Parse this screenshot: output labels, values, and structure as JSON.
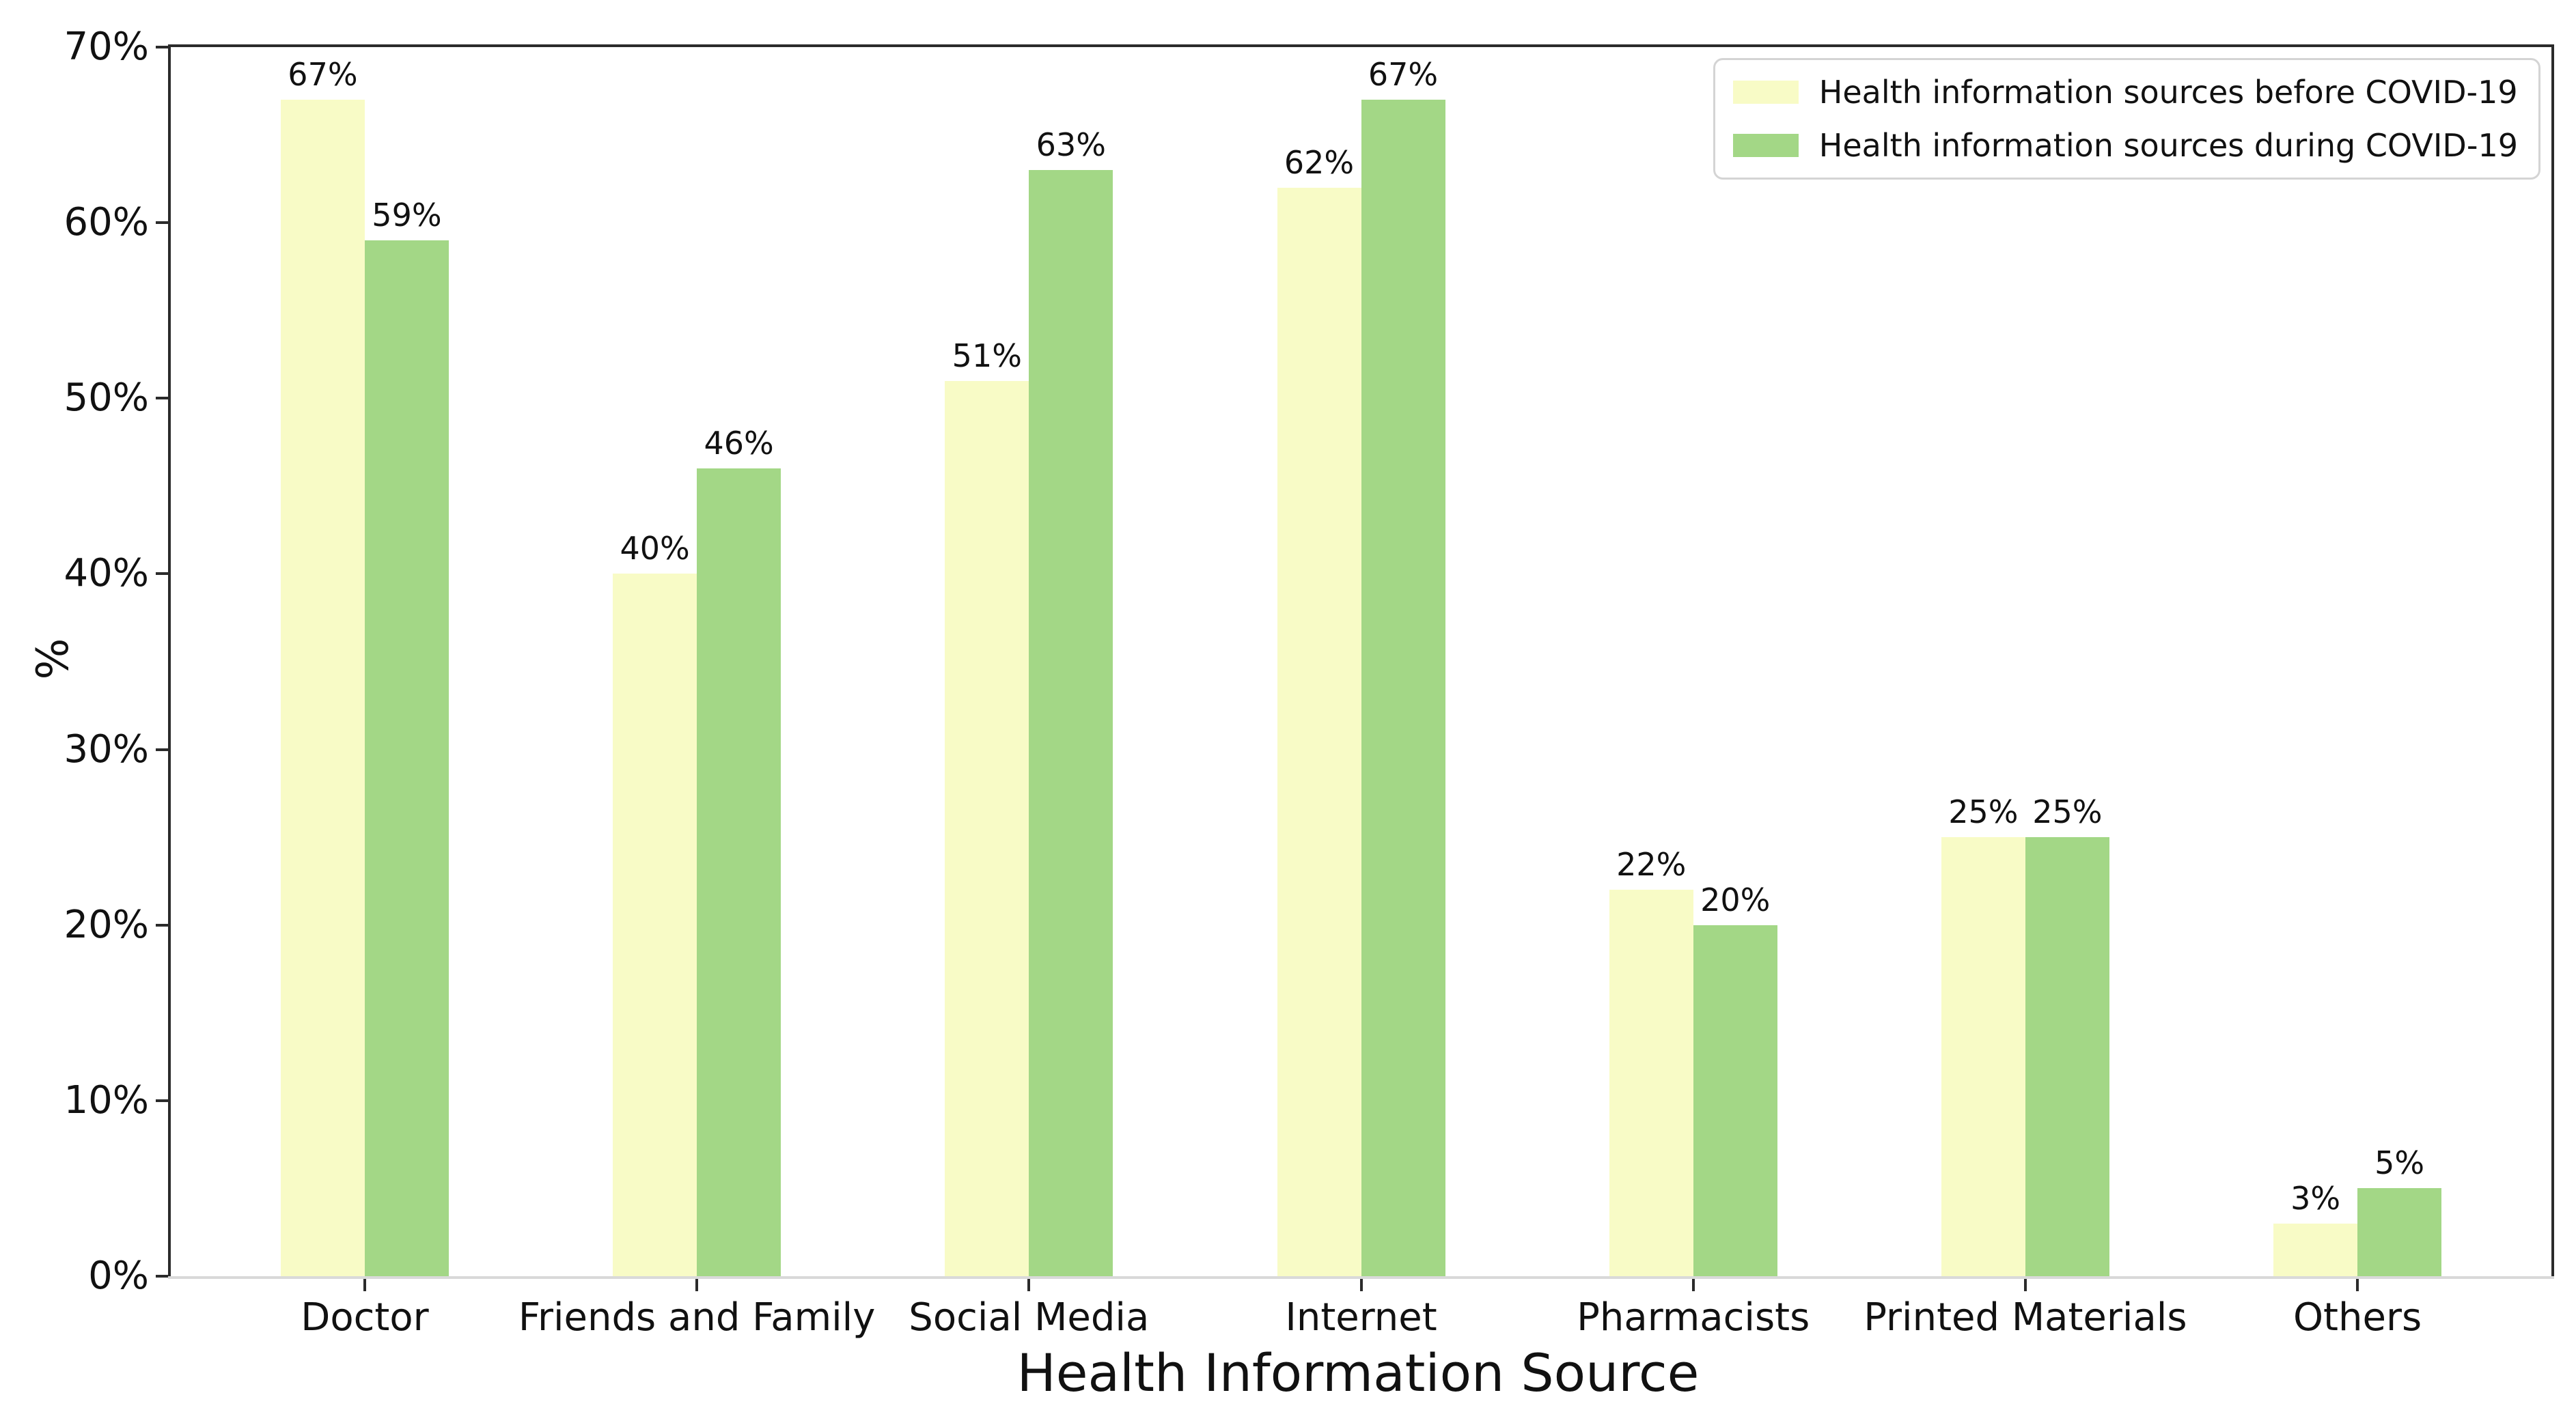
{
  "chart_data": {
    "type": "bar",
    "title": "",
    "xlabel": "Health Information Source",
    "ylabel": "%",
    "ylim": [
      0,
      70
    ],
    "yticks": [
      "0%",
      "10%",
      "20%",
      "30%",
      "40%",
      "50%",
      "60%",
      "70%"
    ],
    "grid": false,
    "legend_position": "upper right",
    "bar_label_format": "{value}%",
    "categories": [
      "Doctor",
      "Friends and Family",
      "Social Media",
      "Internet",
      "Pharmacists",
      "Printed Materials",
      "Others"
    ],
    "series": [
      {
        "name": "Health information sources before COVID-19",
        "color": "#F8FBC6",
        "values": [
          67,
          40,
          51,
          62,
          22,
          25,
          3
        ]
      },
      {
        "name": "Health information sources during COVID-19",
        "color": "#A3D786",
        "values": [
          59,
          46,
          63,
          67,
          20,
          25,
          5
        ]
      }
    ],
    "colors": {
      "spine_dark": "#2b2b2b",
      "spine_bottom": "#d9d9d9",
      "text": "#111111",
      "background": "#ffffff"
    }
  }
}
